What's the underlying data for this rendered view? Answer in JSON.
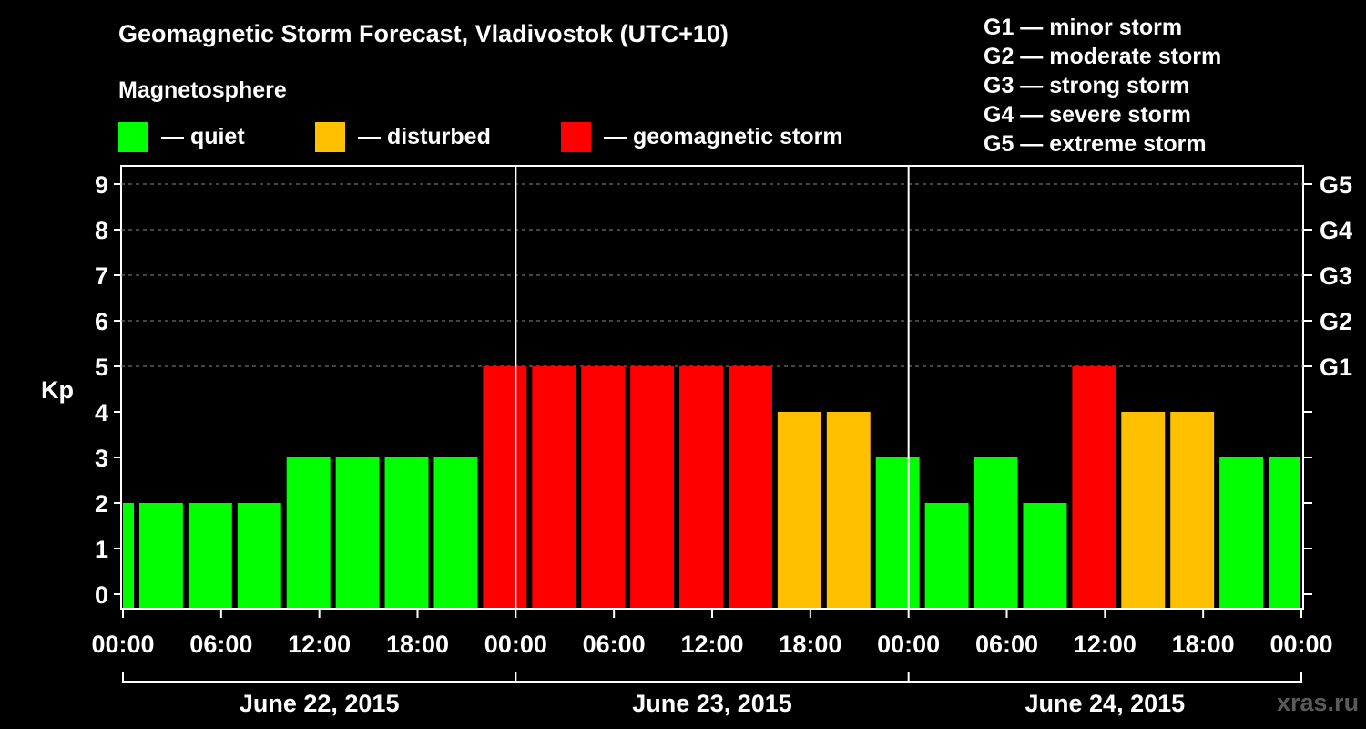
{
  "header": {
    "title": "Geomagnetic Storm Forecast, Vladivostok (UTC+10)",
    "subtitle": "Magnetosphere"
  },
  "legend": [
    {
      "key": "quiet",
      "label": "— quiet",
      "color": "#00ff00"
    },
    {
      "key": "disturbed",
      "label": "— disturbed",
      "color": "#ffc000"
    },
    {
      "key": "storm",
      "label": "— geomagnetic storm",
      "color": "#ff0000"
    }
  ],
  "storm_levels": [
    "G1 — minor storm",
    "G2 — moderate storm",
    "G3 — strong storm",
    "G4 — severe storm",
    "G5 — extreme storm"
  ],
  "watermark": "xras.ru",
  "chart_data": {
    "type": "bar",
    "ylabel": "Kp",
    "ylim": [
      0,
      9
    ],
    "yticks": [
      0,
      1,
      2,
      3,
      4,
      5,
      6,
      7,
      8,
      9
    ],
    "y2ticks": [
      {
        "value": 5,
        "label": "G1"
      },
      {
        "value": 6,
        "label": "G2"
      },
      {
        "value": 7,
        "label": "G3"
      },
      {
        "value": 8,
        "label": "G4"
      },
      {
        "value": 9,
        "label": "G5"
      }
    ],
    "x_range_hours": [
      0,
      72
    ],
    "bar_interval_hours": 3,
    "x_tick_hours": [
      0,
      6,
      12,
      18,
      24,
      30,
      36,
      42,
      48,
      54,
      60,
      66,
      72
    ],
    "x_tick_labels": [
      "00:00",
      "06:00",
      "12:00",
      "18:00",
      "00:00",
      "06:00",
      "12:00",
      "18:00",
      "00:00",
      "06:00",
      "12:00",
      "18:00",
      "00:00"
    ],
    "day_separators_hours": [
      24,
      48
    ],
    "days": [
      {
        "label": "June 22, 2015",
        "start_hour": 0,
        "end_hour": 24
      },
      {
        "label": "June 23, 2015",
        "start_hour": 24,
        "end_hour": 48
      },
      {
        "label": "June 24, 2015",
        "start_hour": 48,
        "end_hour": 72
      }
    ],
    "values": [
      2,
      2,
      2,
      2,
      3,
      3,
      3,
      3,
      5,
      5,
      5,
      5,
      5,
      5,
      4,
      4,
      3,
      2,
      3,
      2,
      5,
      4,
      4,
      3,
      3
    ],
    "bar_start_hours": [
      -1,
      1,
      4,
      7,
      10,
      13,
      16,
      19,
      22,
      25,
      28,
      31,
      34,
      37,
      40,
      43,
      46,
      49,
      52,
      55,
      58,
      61,
      64,
      67,
      70
    ],
    "grid": "horizontal dashed",
    "legend_position": "top"
  }
}
